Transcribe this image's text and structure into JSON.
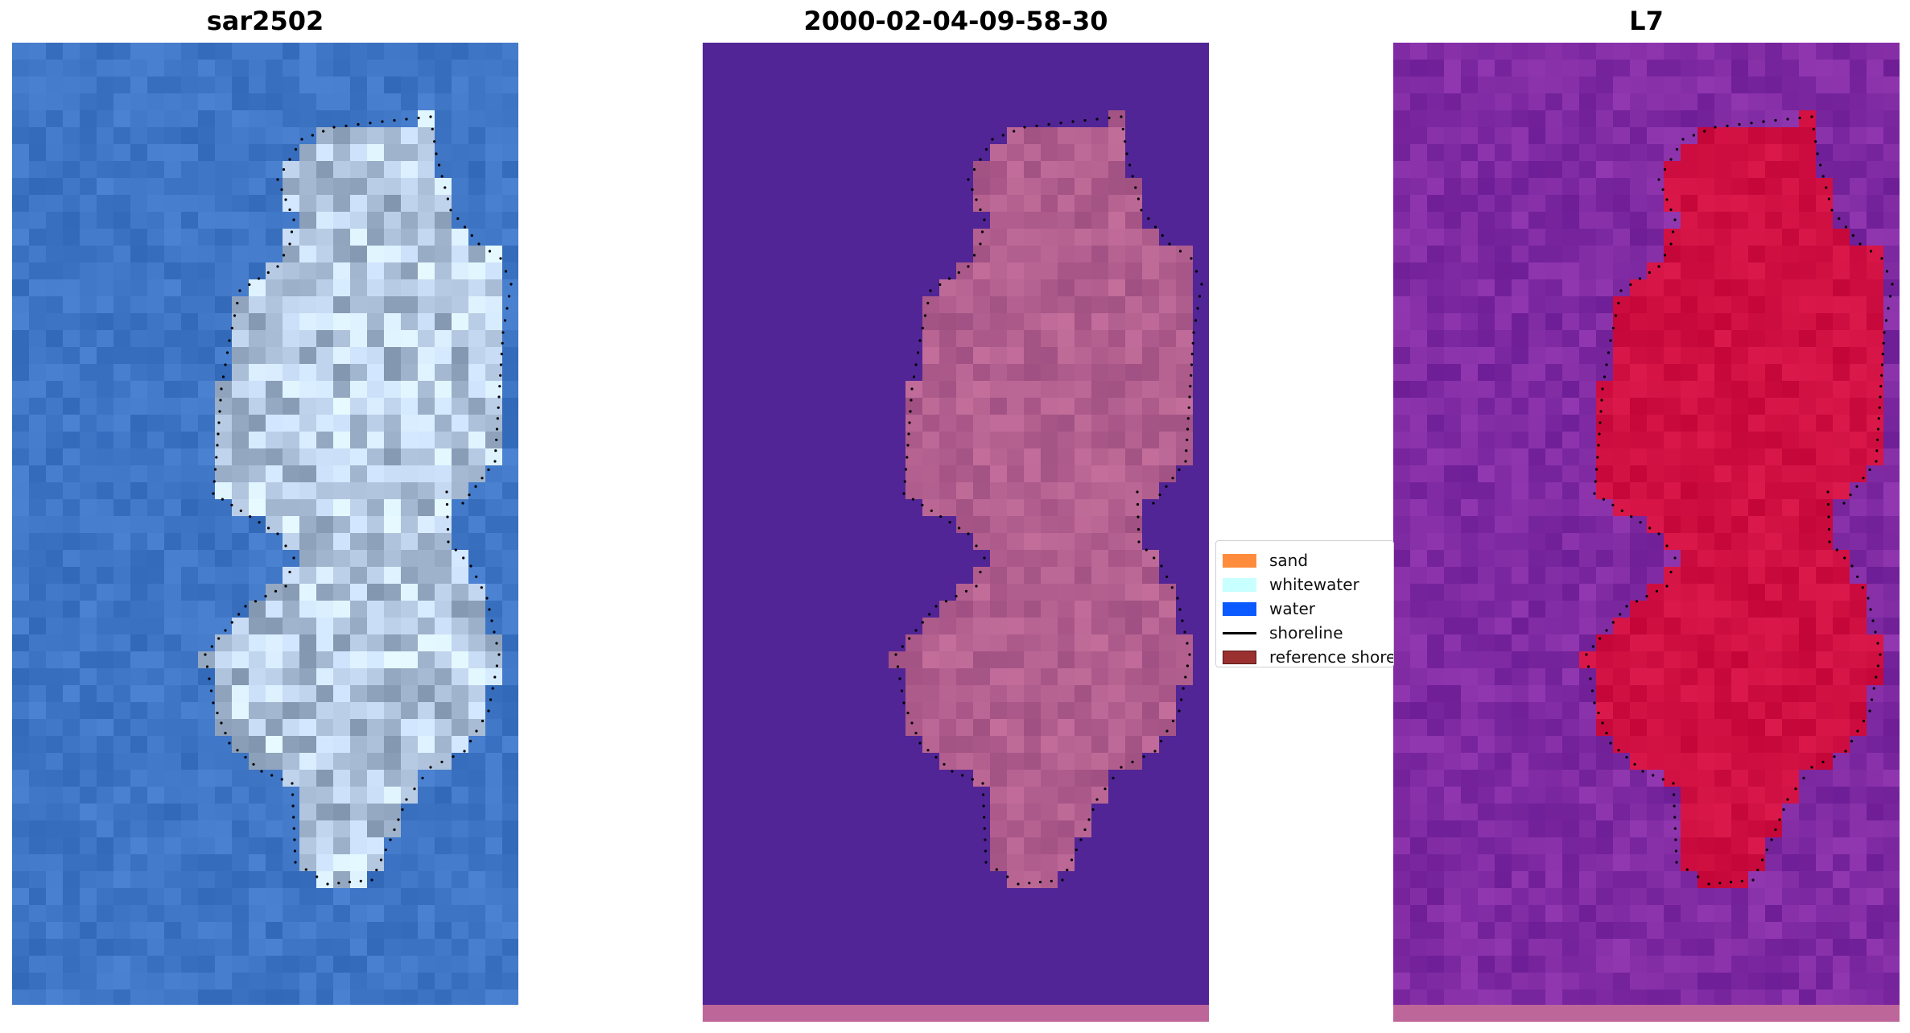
{
  "panels": [
    {
      "title": "sar2502",
      "base_color": "#3a6ebe",
      "style": "rgb"
    },
    {
      "title": "2000-02-04-09-58-30",
      "base_color": "#512596",
      "style": "classified"
    },
    {
      "title": "L7",
      "base_color": "#7a2a9e",
      "style": "index"
    }
  ],
  "legend": {
    "items": [
      {
        "label": "sand",
        "color": "#ff8c3c",
        "type": "patch"
      },
      {
        "label": "whitewater",
        "color": "#c8ffff",
        "type": "patch"
      },
      {
        "label": "water",
        "color": "#0a5aff",
        "type": "patch"
      },
      {
        "label": "shoreline",
        "color": "#000000",
        "type": "line"
      },
      {
        "label": "reference shoreline",
        "color": "#9b3030",
        "type": "patch"
      }
    ]
  },
  "colors": {
    "shoreline_dots": "#000000",
    "bottom_band": "#bd6699",
    "land_classified": "#b2628f",
    "land_index": "#c8003c"
  }
}
